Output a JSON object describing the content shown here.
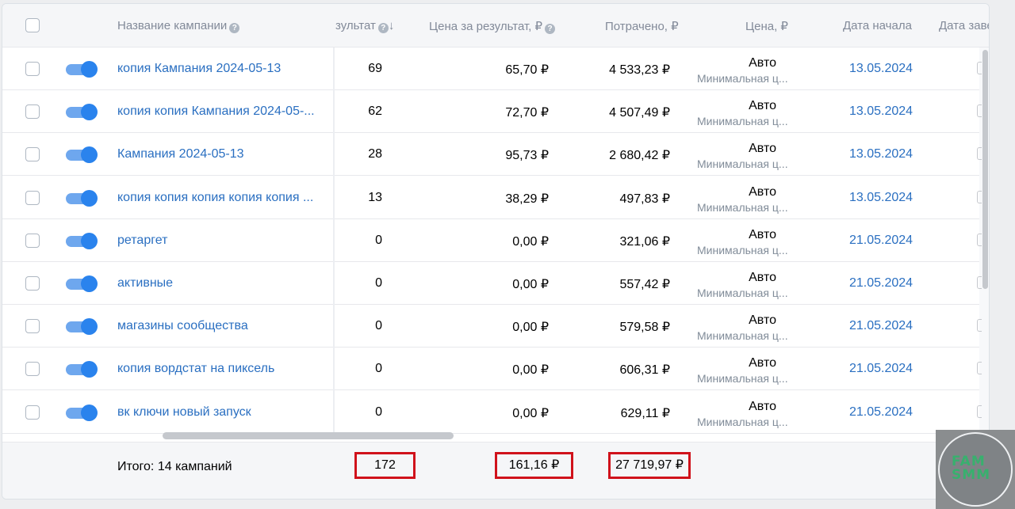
{
  "header": {
    "col_name": "Название кампании",
    "col_result": "зультат",
    "col_price_per_result": "Цена за результат, ₽",
    "col_spent": "Потрачено, ₽",
    "col_price": "Цена, ₽",
    "col_start_date": "Дата начала",
    "col_end_date": "Дата заве",
    "help_glyph": "?",
    "sort_glyph": "↓"
  },
  "rows": [
    {
      "enabled": true,
      "name": "копия Кампания 2024-05-13",
      "result": "69",
      "cpr": "65,70 ₽",
      "spent": "4 533,23 ₽",
      "price_main": "Авто",
      "price_sub": "Минимальная ц...",
      "start": "13.05.2024"
    },
    {
      "enabled": true,
      "name": "копия копия Кампания 2024-05-...",
      "result": "62",
      "cpr": "72,70 ₽",
      "spent": "4 507,49 ₽",
      "price_main": "Авто",
      "price_sub": "Минимальная ц...",
      "start": "13.05.2024"
    },
    {
      "enabled": true,
      "name": "Кампания 2024-05-13",
      "result": "28",
      "cpr": "95,73 ₽",
      "spent": "2 680,42 ₽",
      "price_main": "Авто",
      "price_sub": "Минимальная ц...",
      "start": "13.05.2024"
    },
    {
      "enabled": true,
      "name": "копия копия копия копия копия ...",
      "result": "13",
      "cpr": "38,29 ₽",
      "spent": "497,83 ₽",
      "price_main": "Авто",
      "price_sub": "Минимальная ц...",
      "start": "13.05.2024"
    },
    {
      "enabled": true,
      "name": "ретаргет",
      "result": "0",
      "cpr": "0,00 ₽",
      "spent": "321,06 ₽",
      "price_main": "Авто",
      "price_sub": "Минимальная ц...",
      "start": "21.05.2024"
    },
    {
      "enabled": true,
      "name": "активные",
      "result": "0",
      "cpr": "0,00 ₽",
      "spent": "557,42 ₽",
      "price_main": "Авто",
      "price_sub": "Минимальная ц...",
      "start": "21.05.2024"
    },
    {
      "enabled": true,
      "name": "магазины сообщества",
      "result": "0",
      "cpr": "0,00 ₽",
      "spent": "579,58 ₽",
      "price_main": "Авто",
      "price_sub": "Минимальная ц...",
      "start": "21.05.2024"
    },
    {
      "enabled": true,
      "name": "копия вордстат на пиксель",
      "result": "0",
      "cpr": "0,00 ₽",
      "spent": "606,31 ₽",
      "price_main": "Авто",
      "price_sub": "Минимальная ц...",
      "start": "21.05.2024"
    },
    {
      "enabled": true,
      "name": "вк ключи новый запуск",
      "result": "0",
      "cpr": "0,00 ₽",
      "spent": "629,11 ₽",
      "price_main": "Авто",
      "price_sub": "Минимальная ц...",
      "start": "21.05.2024"
    }
  ],
  "footer": {
    "label": "Итого: 14 кампаний",
    "total_result": "172",
    "total_cpr": "161,16 ₽",
    "total_spent": "27 719,97 ₽"
  },
  "watermark": {
    "line1": "FAM",
    "line2": "SMM"
  },
  "colors": {
    "link": "#2a6fc1",
    "toggle_on": "#2a83ed",
    "highlight_box": "#d0121b"
  }
}
